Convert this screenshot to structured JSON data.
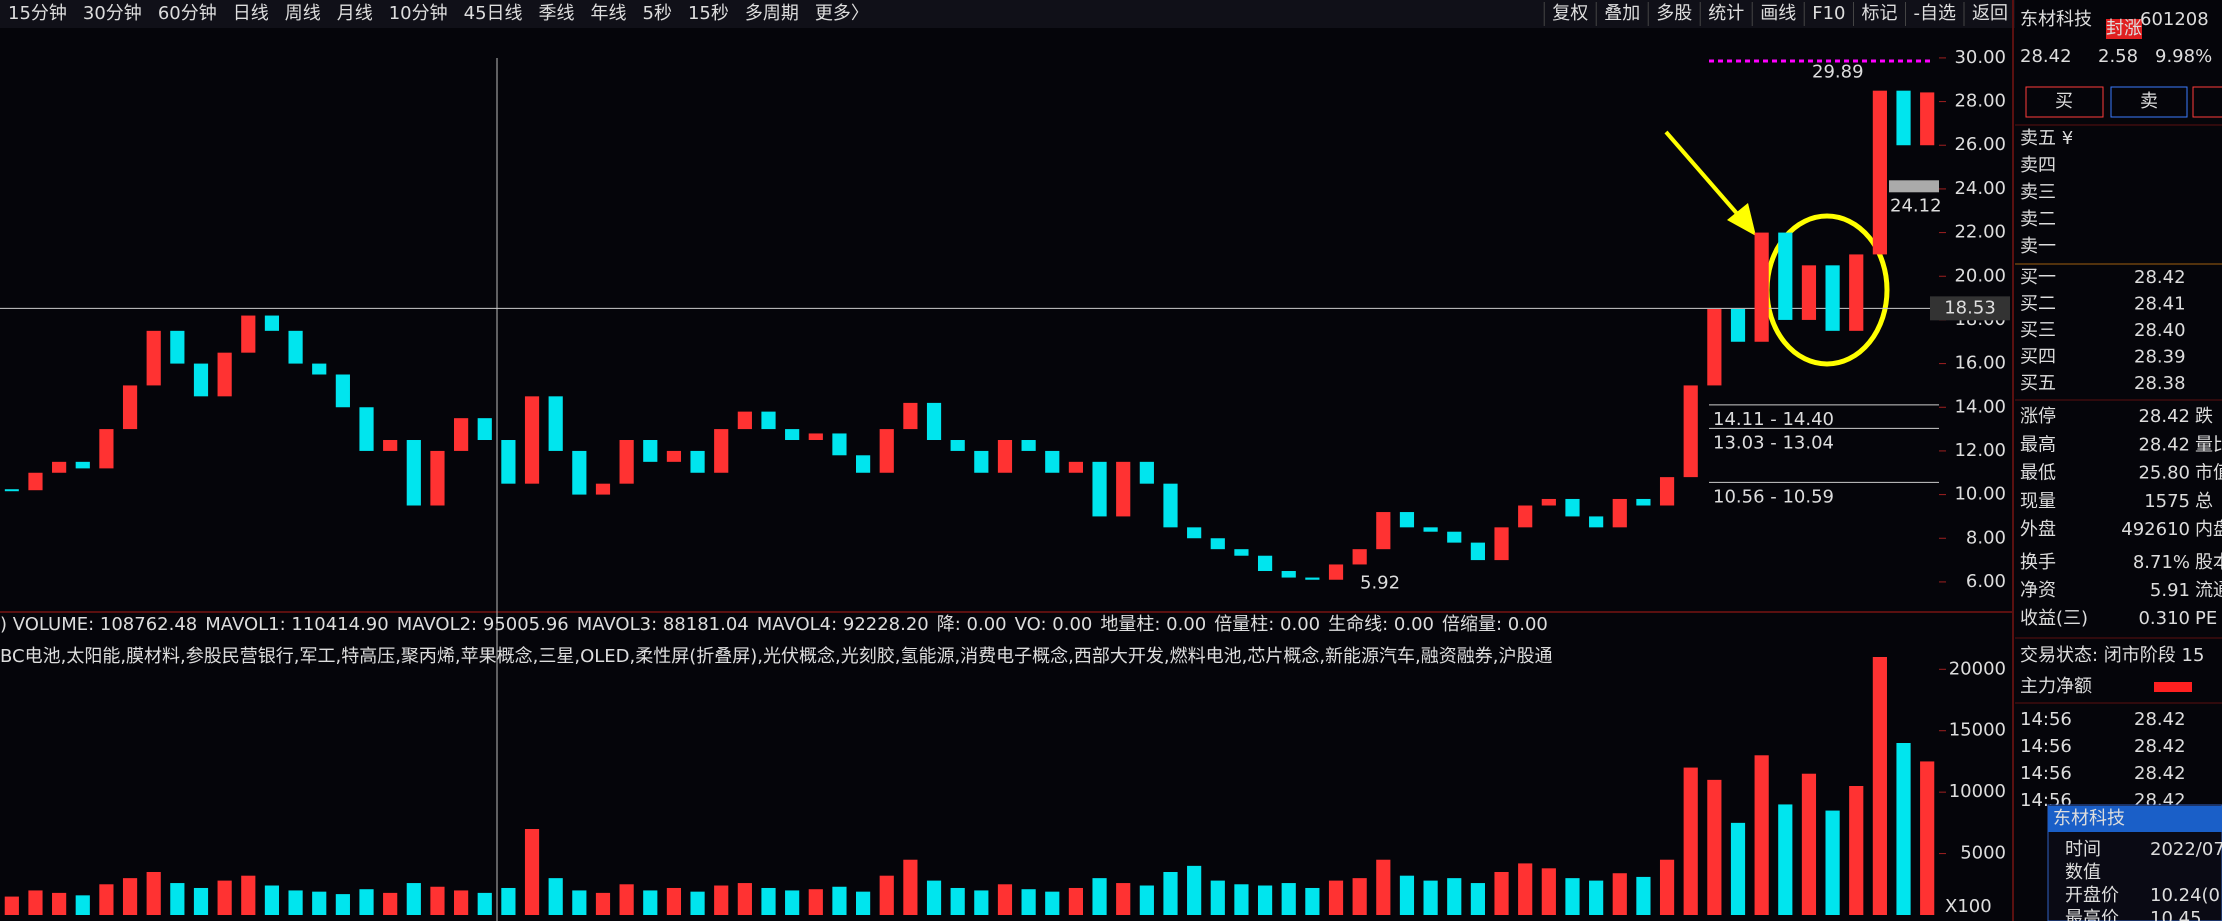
{
  "toolbar": {
    "periods": [
      "15分钟",
      "30分钟",
      "60分钟",
      "日线",
      "周线",
      "月线",
      "10分钟",
      "45日线",
      "季线",
      "年线",
      "5秒",
      "15秒",
      "多周期",
      "更多〉"
    ],
    "active_period": "日线",
    "tools": [
      "复权",
      "叠加",
      "多股",
      "统计",
      "画线",
      "F10",
      "标记",
      "-自选",
      "返回"
    ]
  },
  "price_chart": {
    "type": "candlestick",
    "closes": [
      10.2,
      11,
      11.5,
      11.2,
      13,
      15,
      17.5,
      16,
      14.5,
      16.5,
      18.2,
      17.5,
      16,
      15.5,
      14,
      12,
      12.5,
      9.5,
      12,
      13.5,
      12.5,
      10.5,
      14.5,
      12,
      10,
      10.5,
      12.5,
      11.5,
      12,
      11,
      13,
      13.8,
      13,
      12.5,
      12.8,
      11.8,
      11,
      13,
      14.2,
      12.5,
      12,
      11,
      12.5,
      12,
      11,
      11.5,
      9,
      11.5,
      10.5,
      8.5,
      8,
      7.5,
      7.2,
      6.5,
      6.2,
      6.1,
      6.8,
      7.5,
      9.2,
      8.5,
      8.3,
      7.8,
      7,
      8.5,
      9.5,
      9.8,
      9,
      8.5,
      9.8,
      9.5,
      10.8,
      15,
      18.5,
      17,
      22,
      18,
      20.5,
      17.5,
      21,
      28.5,
      26,
      28.42
    ],
    "ylim": [
      4.76,
      31.37
    ],
    "yticks": [
      {
        "value": 30,
        "label": "30.00"
      },
      {
        "value": 28,
        "label": "28.00"
      },
      {
        "value": 26,
        "label": "26.00"
      },
      {
        "value": 24,
        "label": "24.00"
      },
      {
        "value": 22,
        "label": "22.00"
      },
      {
        "value": 20,
        "label": "20.00"
      },
      {
        "value": 18,
        "label": "18.00"
      },
      {
        "value": 16,
        "label": "16.00"
      },
      {
        "value": 14,
        "label": "14.00"
      },
      {
        "value": 12,
        "label": "12.00"
      },
      {
        "value": 10,
        "label": "10.00"
      },
      {
        "value": 8,
        "label": "8.00"
      },
      {
        "value": 6,
        "label": "6.00"
      }
    ],
    "crosshair_price": 18.53,
    "high_label": 29.89,
    "gap_label": 24.12,
    "low_label": 5.92,
    "ranges": [
      {
        "value": 14.11,
        "label": "14.11 - 14.40"
      },
      {
        "value": 13.03,
        "label": "13.03 - 13.04"
      },
      {
        "value": 10.56,
        "label": "10.56 - 10.59"
      }
    ]
  },
  "indicators": [
    {
      "text": ") VOLUME: 108762.48",
      "color": "#ffffff"
    },
    {
      "text": "MAVOL1: 110414.90",
      "color": "#ffffff"
    },
    {
      "text": "MAVOL2: 95005.96",
      "color": "#ffff00"
    },
    {
      "text": "MAVOL3: 88181.04",
      "color": "#ff40ff"
    },
    {
      "text": "MAVOL4: 92228.20",
      "color": "#00ff00"
    },
    {
      "text": "降: 0.00",
      "color": "#ffffff"
    },
    {
      "text": "VO: 0.00",
      "color": "#3060ff"
    },
    {
      "text": "地量柱: 0.00",
      "color": "#ff4040"
    },
    {
      "text": "倍量柱: 0.00",
      "color": "#ffff00"
    },
    {
      "text": "生命线: 0.00",
      "color": "#ff3030"
    },
    {
      "text": "倍缩量: 0.00",
      "color": "#3060ff"
    }
  ],
  "concepts": "BC电池,太阳能,膜材料,参股民营银行,军工,特高压,聚丙烯,苹果概念,三星,OLED,柔性屏(折叠屏),光伏概念,光刻胶,氢能源,消费电子概念,西部大开发,燃料电池,芯片概念,新能源汽车,融资融券,沪股通",
  "volume_chart": {
    "type": "bar",
    "values": [
      1500,
      2000,
      1800,
      1600,
      2500,
      3000,
      3500,
      2600,
      2200,
      2800,
      3200,
      2400,
      2000,
      1900,
      1700,
      2100,
      1800,
      2600,
      2300,
      2000,
      1800,
      2200,
      7000,
      3000,
      2000,
      1800,
      2500,
      2000,
      2200,
      1900,
      2400,
      2600,
      2200,
      2000,
      2100,
      2300,
      1900,
      3200,
      4500,
      2800,
      2200,
      2000,
      2500,
      2100,
      1900,
      2200,
      3000,
      2600,
      2400,
      3500,
      4000,
      2800,
      2500,
      2400,
      2600,
      2200,
      2800,
      3000,
      4500,
      3200,
      2800,
      3000,
      2600,
      3500,
      4200,
      3800,
      3000,
      2800,
      3400,
      3100,
      4500,
      12000,
      11000,
      7500,
      13000,
      9000,
      11500,
      8500,
      10500,
      21000,
      14000,
      12500
    ],
    "ylim": [
      0,
      21000
    ],
    "yticks": [
      5000,
      10000,
      15000,
      20000
    ],
    "unit_label": "X100"
  },
  "quote_panel": {
    "name": "东材科技",
    "badge": "封涨",
    "code": "601208",
    "price": "28.42",
    "change": "2.58",
    "pct": "9.98%",
    "buy_button": "买",
    "sell_button": "卖",
    "asks": [
      "卖五 ¥",
      "卖四",
      "卖三",
      "卖二",
      "卖一"
    ],
    "bids": [
      {
        "label": "买一",
        "price": "28.42"
      },
      {
        "label": "买二",
        "price": "28.41"
      },
      {
        "label": "买三",
        "price": "28.40"
      },
      {
        "label": "买四",
        "price": "28.39"
      },
      {
        "label": "买五",
        "price": "28.38"
      }
    ],
    "stats": [
      {
        "label": "涨停",
        "value": "28.42",
        "extra": "跌",
        "color": "#ff3b3b"
      },
      {
        "label": "最高",
        "value": "28.42",
        "extra": "量比",
        "color": "#ff3b3b"
      },
      {
        "label": "最低",
        "value": "25.80",
        "extra": "市值",
        "color": "#00d000"
      },
      {
        "label": "现量",
        "value": "1575",
        "extra": "总",
        "color": "#ff40ff"
      },
      {
        "label": "外盘",
        "value": "492610",
        "extra": "内盘",
        "color": "#ff3b3b"
      },
      {
        "label": "换手",
        "value": "8.71%",
        "extra": "股本",
        "color": "#ffffff"
      },
      {
        "label": "净资",
        "value": "5.91",
        "extra": "流通",
        "color": "#ffffff"
      },
      {
        "label": "收益(三)",
        "value": "0.310",
        "extra": "PE",
        "color": "#ffffff"
      }
    ],
    "status": "交易状态: 闭市阶段 15",
    "main_flow": "主力净额",
    "ticks": [
      {
        "time": "14:56",
        "price": "28.42"
      },
      {
        "time": "14:56",
        "price": "28.42"
      },
      {
        "time": "14:56",
        "price": "28.42"
      },
      {
        "time": "14:56",
        "price": "28.42"
      }
    ],
    "popup": {
      "title": "东材科技",
      "rows": [
        {
          "label": "时间",
          "value": "2022/07"
        },
        {
          "label": "数值",
          "value": ""
        },
        {
          "label": "开盘价",
          "value": "10.24(0"
        },
        {
          "label": "最高价",
          "value": "10.45"
        }
      ]
    }
  }
}
